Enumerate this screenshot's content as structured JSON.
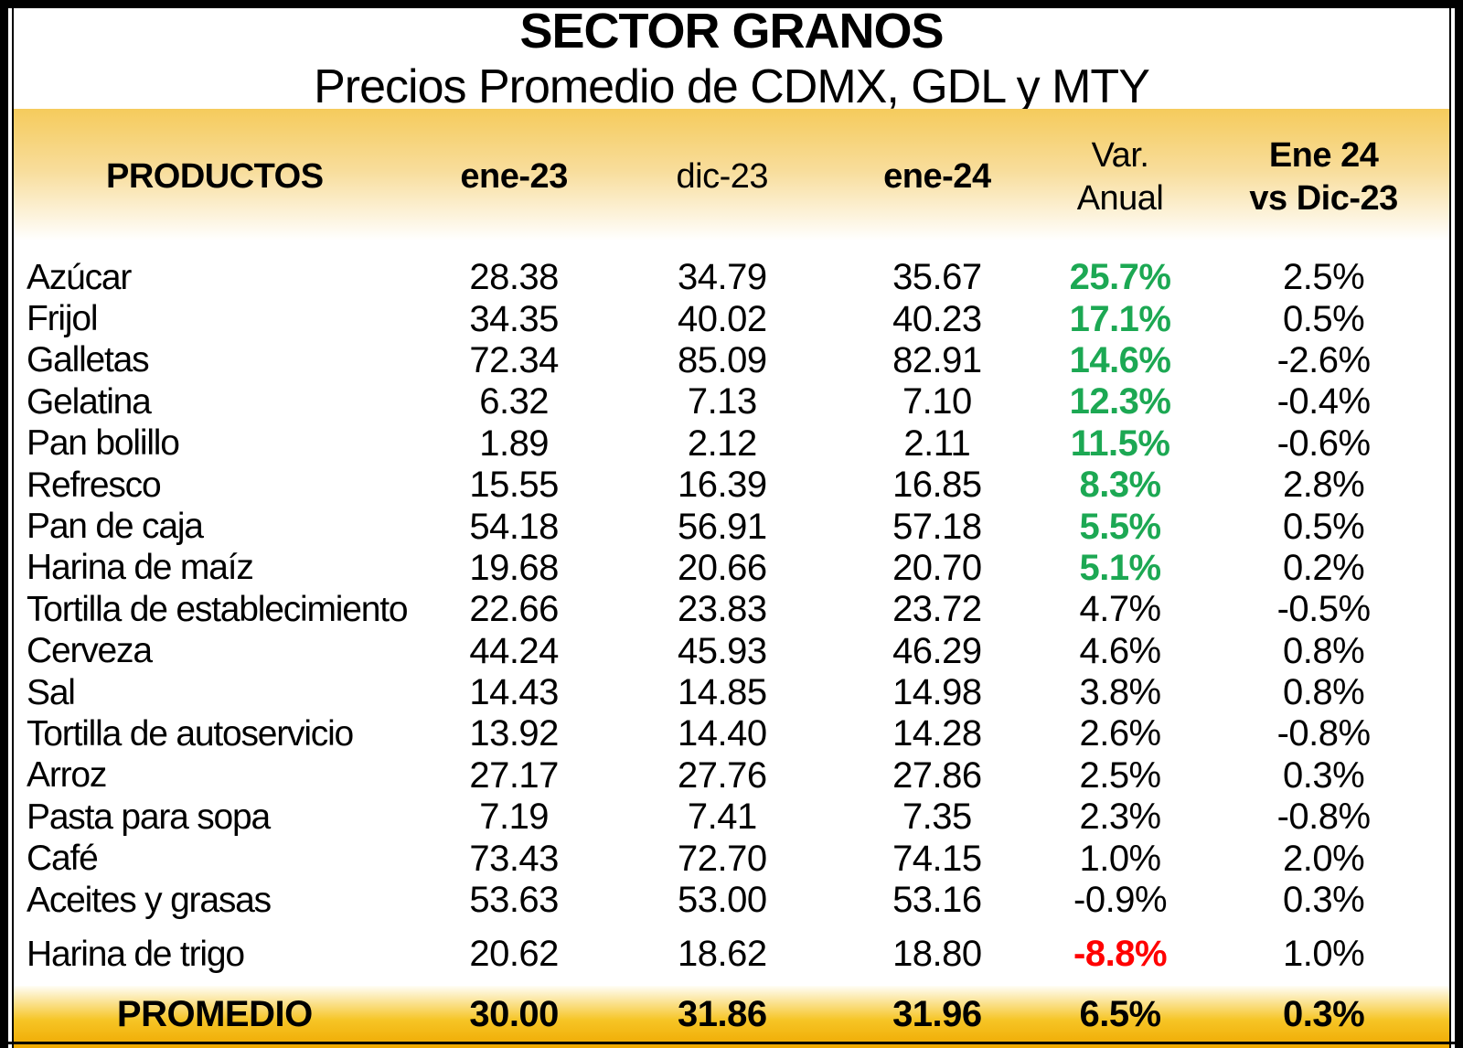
{
  "title": "SECTOR GRANOS",
  "subtitle": "Precios Promedio de CDMX, GDL y MTY",
  "colors": {
    "header_gradient_gold": "#F5CB5C",
    "footer_gradient_gold": "#F0A900",
    "positive_green": "#1CA853",
    "negative_red": "#FF0000"
  },
  "table": {
    "header": {
      "products": "PRODUCTOS",
      "ene23": "ene-23",
      "dic23": "dic-23",
      "ene24": "ene-24",
      "var_line1": "Var.",
      "var_line2": "Anual",
      "vs_line1": "Ene 24",
      "vs_line2": "vs Dic-23"
    },
    "rows": [
      {
        "product": "Azúcar",
        "ene23": "28.38",
        "dic23": "34.79",
        "ene24": "35.67",
        "var_anual": "25.7%",
        "var_style": "green",
        "ene24_vs_dic23": "2.5%"
      },
      {
        "product": "Frijol",
        "ene23": "34.35",
        "dic23": "40.02",
        "ene24": "40.23",
        "var_anual": "17.1%",
        "var_style": "green",
        "ene24_vs_dic23": "0.5%"
      },
      {
        "product": "Galletas",
        "ene23": "72.34",
        "dic23": "85.09",
        "ene24": "82.91",
        "var_anual": "14.6%",
        "var_style": "green",
        "ene24_vs_dic23": "-2.6%"
      },
      {
        "product": "Gelatina",
        "ene23": "6.32",
        "dic23": "7.13",
        "ene24": "7.10",
        "var_anual": "12.3%",
        "var_style": "green",
        "ene24_vs_dic23": "-0.4%"
      },
      {
        "product": "Pan bolillo",
        "ene23": "1.89",
        "dic23": "2.12",
        "ene24": "2.11",
        "var_anual": "11.5%",
        "var_style": "green",
        "ene24_vs_dic23": "-0.6%"
      },
      {
        "product": "Refresco",
        "ene23": "15.55",
        "dic23": "16.39",
        "ene24": "16.85",
        "var_anual": "8.3%",
        "var_style": "green",
        "ene24_vs_dic23": "2.8%"
      },
      {
        "product": "Pan de caja",
        "ene23": "54.18",
        "dic23": "56.91",
        "ene24": "57.18",
        "var_anual": "5.5%",
        "var_style": "green",
        "ene24_vs_dic23": "0.5%"
      },
      {
        "product": "Harina de maíz",
        "ene23": "19.68",
        "dic23": "20.66",
        "ene24": "20.70",
        "var_anual": "5.1%",
        "var_style": "green",
        "ene24_vs_dic23": "0.2%"
      },
      {
        "product": "Tortilla de establecimiento",
        "ene23": "22.66",
        "dic23": "23.83",
        "ene24": "23.72",
        "var_anual": "4.7%",
        "var_style": "black",
        "ene24_vs_dic23": "-0.5%"
      },
      {
        "product": "Cerveza",
        "ene23": "44.24",
        "dic23": "45.93",
        "ene24": "46.29",
        "var_anual": "4.6%",
        "var_style": "black",
        "ene24_vs_dic23": "0.8%"
      },
      {
        "product": "Sal",
        "ene23": "14.43",
        "dic23": "14.85",
        "ene24": "14.98",
        "var_anual": "3.8%",
        "var_style": "black",
        "ene24_vs_dic23": "0.8%"
      },
      {
        "product": "Tortilla de autoservicio",
        "ene23": "13.92",
        "dic23": "14.40",
        "ene24": "14.28",
        "var_anual": "2.6%",
        "var_style": "black",
        "ene24_vs_dic23": "-0.8%"
      },
      {
        "product": "Arroz",
        "ene23": "27.17",
        "dic23": "27.76",
        "ene24": "27.86",
        "var_anual": "2.5%",
        "var_style": "black",
        "ene24_vs_dic23": "0.3%"
      },
      {
        "product": "Pasta para sopa",
        "ene23": "7.19",
        "dic23": "7.41",
        "ene24": "7.35",
        "var_anual": "2.3%",
        "var_style": "black",
        "ene24_vs_dic23": "-0.8%"
      },
      {
        "product": "Café",
        "ene23": "73.43",
        "dic23": "72.70",
        "ene24": "74.15",
        "var_anual": "1.0%",
        "var_style": "black",
        "ene24_vs_dic23": "2.0%"
      },
      {
        "product": "Aceites y grasas",
        "ene23": "53.63",
        "dic23": "53.00",
        "ene24": "53.16",
        "var_anual": "-0.9%",
        "var_style": "black",
        "ene24_vs_dic23": "0.3%"
      },
      {
        "product": "Harina de trigo",
        "ene23": "20.62",
        "dic23": "18.62",
        "ene24": "18.80",
        "var_anual": "-8.8%",
        "var_style": "red",
        "ene24_vs_dic23": "1.0%"
      }
    ],
    "footer": {
      "label": "PROMEDIO",
      "ene23": "30.00",
      "dic23": "31.86",
      "ene24": "31.96",
      "var_anual": "6.5%",
      "ene24_vs_dic23": "0.3%"
    }
  },
  "chart_data": {
    "type": "table",
    "title": "SECTOR GRANOS",
    "subtitle": "Precios Promedio de CDMX, GDL y MTY",
    "columns": [
      "PRODUCTOS",
      "ene-23",
      "dic-23",
      "ene-24",
      "Var. Anual",
      "Ene 24 vs Dic-23"
    ],
    "rows": [
      [
        "Azúcar",
        28.38,
        34.79,
        35.67,
        "25.7%",
        "2.5%"
      ],
      [
        "Frijol",
        34.35,
        40.02,
        40.23,
        "17.1%",
        "0.5%"
      ],
      [
        "Galletas",
        72.34,
        85.09,
        82.91,
        "14.6%",
        "-2.6%"
      ],
      [
        "Gelatina",
        6.32,
        7.13,
        7.1,
        "12.3%",
        "-0.4%"
      ],
      [
        "Pan bolillo",
        1.89,
        2.12,
        2.11,
        "11.5%",
        "-0.6%"
      ],
      [
        "Refresco",
        15.55,
        16.39,
        16.85,
        "8.3%",
        "2.8%"
      ],
      [
        "Pan de caja",
        54.18,
        56.91,
        57.18,
        "5.5%",
        "0.5%"
      ],
      [
        "Harina de maíz",
        19.68,
        20.66,
        20.7,
        "5.1%",
        "0.2%"
      ],
      [
        "Tortilla de establecimiento",
        22.66,
        23.83,
        23.72,
        "4.7%",
        "-0.5%"
      ],
      [
        "Cerveza",
        44.24,
        45.93,
        46.29,
        "4.6%",
        "0.8%"
      ],
      [
        "Sal",
        14.43,
        14.85,
        14.98,
        "3.8%",
        "0.8%"
      ],
      [
        "Tortilla de autoservicio",
        13.92,
        14.4,
        14.28,
        "2.6%",
        "-0.8%"
      ],
      [
        "Arroz",
        27.17,
        27.76,
        27.86,
        "2.5%",
        "0.3%"
      ],
      [
        "Pasta para sopa",
        7.19,
        7.41,
        7.35,
        "2.3%",
        "-0.8%"
      ],
      [
        "Café",
        73.43,
        72.7,
        74.15,
        "1.0%",
        "2.0%"
      ],
      [
        "Aceites y grasas",
        53.63,
        53.0,
        53.16,
        "-0.9%",
        "0.3%"
      ],
      [
        "Harina de trigo",
        20.62,
        18.62,
        18.8,
        "-8.8%",
        "1.0%"
      ]
    ],
    "footer_row": [
      "PROMEDIO",
      30.0,
      31.86,
      31.96,
      "6.5%",
      "0.3%"
    ]
  }
}
